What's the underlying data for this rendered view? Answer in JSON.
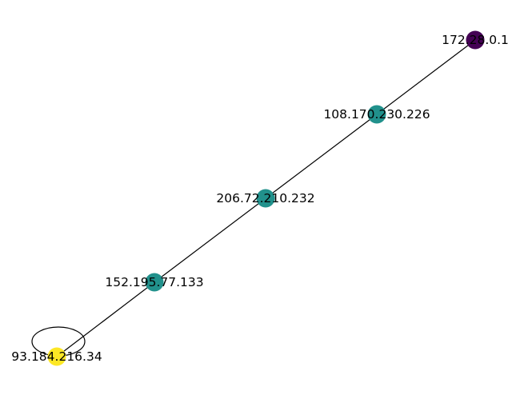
{
  "graph": {
    "nodes": [
      {
        "id": "172.28.0.1",
        "label": "172.28.0.1",
        "color": "#440154"
      },
      {
        "id": "108.170.230.226",
        "label": "108.170.230.226",
        "color": "#21918c"
      },
      {
        "id": "206.72.210.232",
        "label": "206.72.210.232",
        "color": "#21918c"
      },
      {
        "id": "152.195.77.133",
        "label": "152.195.77.133",
        "color": "#21918c"
      },
      {
        "id": "93.184.216.34",
        "label": "93.184.216.34",
        "color": "#fde725"
      }
    ],
    "edges": [
      {
        "source": "172.28.0.1",
        "target": "108.170.230.226"
      },
      {
        "source": "108.170.230.226",
        "target": "206.72.210.232"
      },
      {
        "source": "206.72.210.232",
        "target": "152.195.77.133"
      },
      {
        "source": "152.195.77.133",
        "target": "93.184.216.34"
      },
      {
        "source": "93.184.216.34",
        "target": "93.184.216.34"
      }
    ],
    "edge_color": "#000000",
    "background": "#ffffff"
  }
}
